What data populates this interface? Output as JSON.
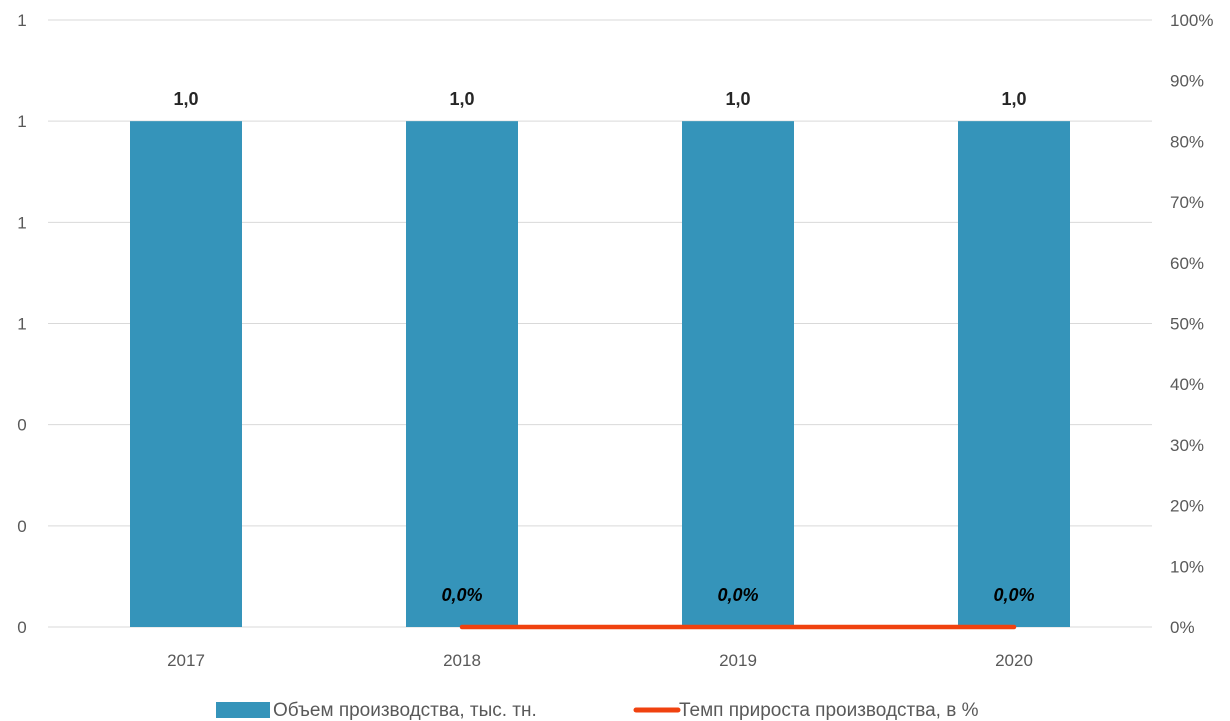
{
  "chart_data": {
    "type": "bar",
    "categories": [
      "2017",
      "2018",
      "2019",
      "2020"
    ],
    "series": [
      {
        "name": "Объем производства, тыс. тн.",
        "type": "bar",
        "axis": "left",
        "values": [
          1.0,
          1.0,
          1.0,
          1.0
        ],
        "labels": [
          "1,0",
          "1,0",
          "1,0",
          "1,0"
        ]
      },
      {
        "name": "Темп прироста производства, в %",
        "type": "line",
        "axis": "right",
        "values": [
          null,
          0.0,
          0.0,
          0.0
        ],
        "labels": [
          "",
          "0,0%",
          "0,0%",
          "0,0%"
        ]
      }
    ],
    "y_left": {
      "ylim": [
        0,
        1.2
      ],
      "ticks": [
        0,
        0.2,
        0.4,
        0.6,
        0.8,
        1.0,
        1.2
      ],
      "tick_labels": [
        "0",
        "0",
        "0",
        "1",
        "1",
        "1",
        "1"
      ]
    },
    "y_right": {
      "ylim": [
        0,
        100
      ],
      "ticks": [
        0,
        10,
        20,
        30,
        40,
        50,
        60,
        70,
        80,
        90,
        100
      ],
      "tick_labels": [
        "0%",
        "10%",
        "20%",
        "30%",
        "40%",
        "50%",
        "60%",
        "70%",
        "80%",
        "90%",
        "100%"
      ]
    },
    "grid": true,
    "legend_position": "bottom",
    "colors": {
      "bar": "#3594BA",
      "line": "#F0420F",
      "grid": "#D9D9D9",
      "axis_text": "#595959"
    }
  }
}
